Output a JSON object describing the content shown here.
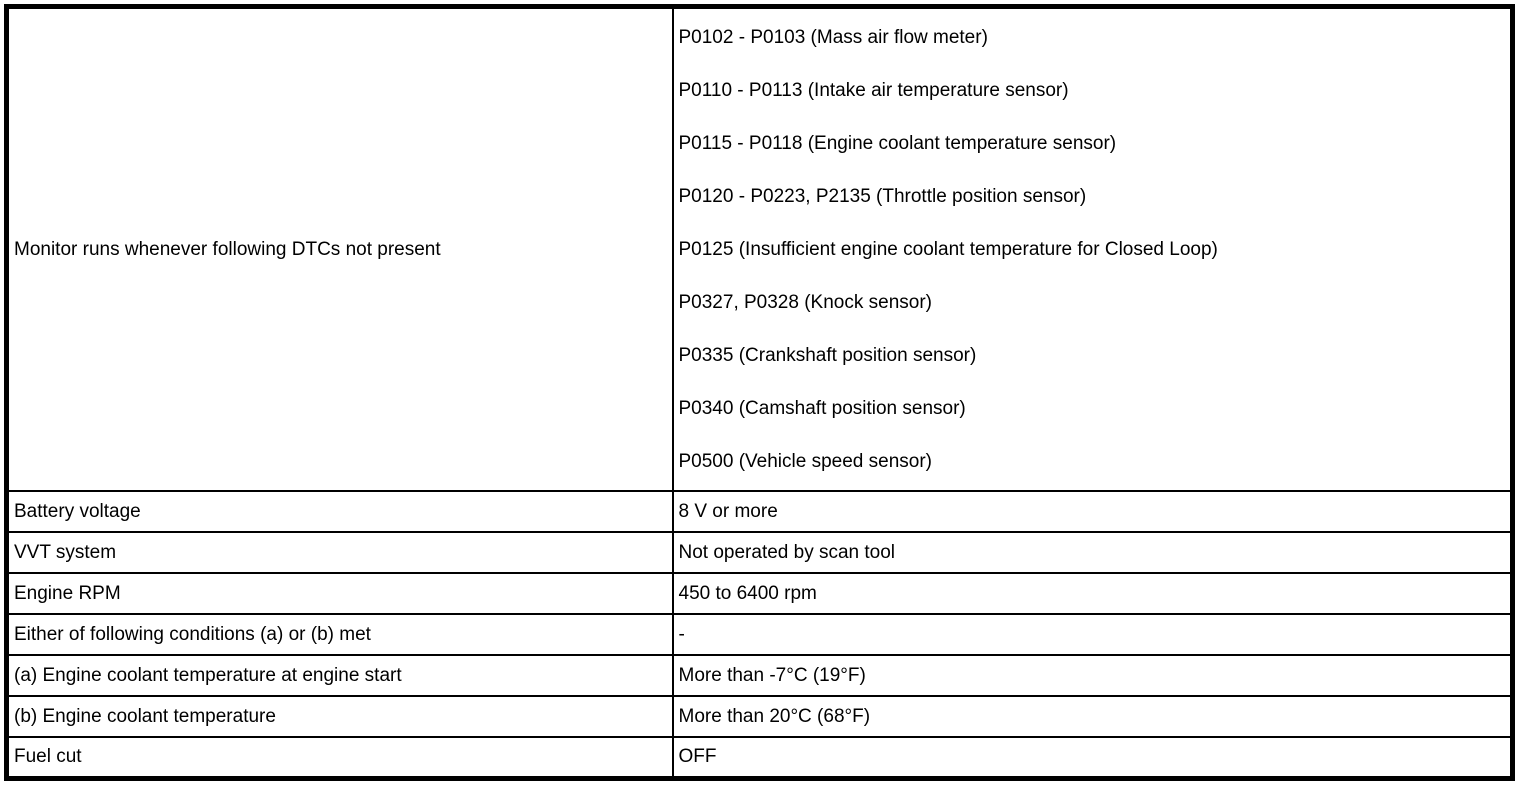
{
  "colors": {
    "background": "#ffffff",
    "border": "#000000",
    "text": "#000000"
  },
  "table": {
    "description": "Monitor run condition specification table",
    "rows": [
      {
        "label": "Monitor runs whenever following DTCs not present",
        "value_lines": [
          "P0102 - P0103 (Mass air flow meter)",
          "P0110 - P0113 (Intake air temperature sensor)",
          "P0115 - P0118 (Engine coolant temperature sensor)",
          "P0120 - P0223, P2135 (Throttle position sensor)",
          "P0125 (Insufficient engine coolant temperature for Closed Loop)",
          "P0327, P0328 (Knock sensor)",
          "P0335 (Crankshaft position sensor)",
          "P0340 (Camshaft position sensor)",
          "P0500 (Vehicle speed sensor)"
        ]
      },
      {
        "label": "Battery voltage",
        "value": "8 V or more"
      },
      {
        "label": "VVT system",
        "value": "Not operated by scan tool"
      },
      {
        "label": "Engine RPM",
        "value": "450 to 6400 rpm"
      },
      {
        "label": "Either of following conditions (a) or (b) met",
        "value": "-"
      },
      {
        "label": "(a) Engine coolant temperature at engine start",
        "value": "More than -7°C (19°F)"
      },
      {
        "label": "(b) Engine coolant temperature",
        "value": "More than 20°C (68°F)"
      },
      {
        "label": "Fuel cut",
        "value": "OFF"
      }
    ]
  }
}
